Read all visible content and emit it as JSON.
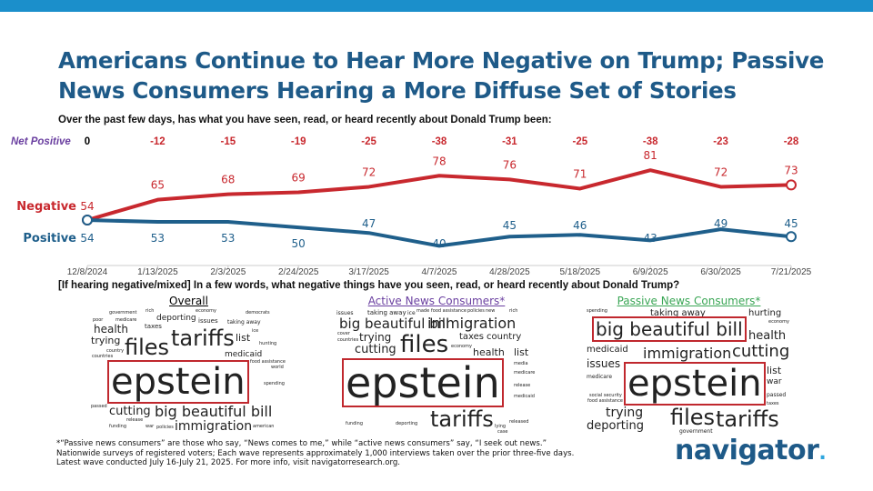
{
  "title": "Americans Continue to Hear More Negative on Trump; Passive News Consumers Hearing a More Diffuse Set of Stories",
  "question1": "Over the past few days, has what you have seen, read, or heard recently about Donald Trump been:",
  "question2": "[If hearing negative/mixed] In a few words, what negative things have you seen, read, or heard recently about Donald Trump?",
  "colors": {
    "negative": "#c8282e",
    "positive": "#1f5f8b",
    "net_label": "#6a3fa0",
    "title": "#1e5a88"
  },
  "chart_data": {
    "type": "line",
    "categories": [
      "12/8/2024",
      "1/13/2025",
      "2/3/2025",
      "2/24/2025",
      "3/17/2025",
      "4/7/2025",
      "4/28/2025",
      "5/18/2025",
      "6/9/2025",
      "6/30/2025",
      "7/21/2025"
    ],
    "series": [
      {
        "name": "Negative",
        "values": [
          54,
          65,
          68,
          69,
          72,
          78,
          76,
          71,
          81,
          72,
          73
        ]
      },
      {
        "name": "Positive",
        "values": [
          54,
          53,
          53,
          50,
          47,
          40,
          45,
          46,
          43,
          49,
          45
        ]
      }
    ],
    "net_label": "Net Positive",
    "net_values": [
      "0",
      "-12",
      "-15",
      "-19",
      "-25",
      "-38",
      "-31",
      "-25",
      "-38",
      "-23",
      "-28"
    ]
  },
  "clouds": [
    {
      "heading": "Overall",
      "words": [
        "epstein",
        "tariffs",
        "files",
        "big beautiful bill",
        "immigration",
        "cutting",
        "health",
        "trying",
        "deporting",
        "medicaid",
        "list",
        "taxes",
        "issues",
        "taking away",
        "government",
        "rich",
        "economy",
        "poor",
        "medicare",
        "democrats",
        "countries",
        "country",
        "hunting",
        "ice",
        "food assistance",
        "world",
        "spending",
        "passed",
        "release",
        "funding",
        "war",
        "policies",
        "american"
      ]
    },
    {
      "heading": "Active News Consumers*",
      "words": [
        "epstein",
        "files",
        "tariffs",
        "big beautiful bill",
        "immigration",
        "cutting",
        "trying",
        "health",
        "taxes",
        "country",
        "list",
        "taking away",
        "issues",
        "ice",
        "cover",
        "countries",
        "media",
        "medicare",
        "made",
        "food assistance",
        "policies",
        "new",
        "rich",
        "economy",
        "deporting",
        "release",
        "medicaid",
        "funding",
        "lying",
        "case",
        "released"
      ]
    },
    {
      "heading": "Passive News Consumers*",
      "words": [
        "epstein",
        "big beautiful bill",
        "files",
        "tariffs",
        "cutting",
        "immigration",
        "trying",
        "deporting",
        "health",
        "medicaid",
        "issues",
        "list",
        "war",
        "taking away",
        "hurting",
        "passed",
        "medicare",
        "government",
        "spending",
        "economy",
        "food assistance",
        "taxes",
        "social security"
      ]
    }
  ],
  "footnote": [
    "*“Passive news consumers” are those who say, “News comes to me,” while “active news consumers” say, “I seek out news.”",
    "Nationwide surveys of registered voters; Each wave represents approximately 1,000 interviews taken over the prior three-five days.",
    "Latest wave conducted July 16-July 21, 2025. For more info, visit navigatorresearch.org."
  ],
  "logo": "navigator"
}
